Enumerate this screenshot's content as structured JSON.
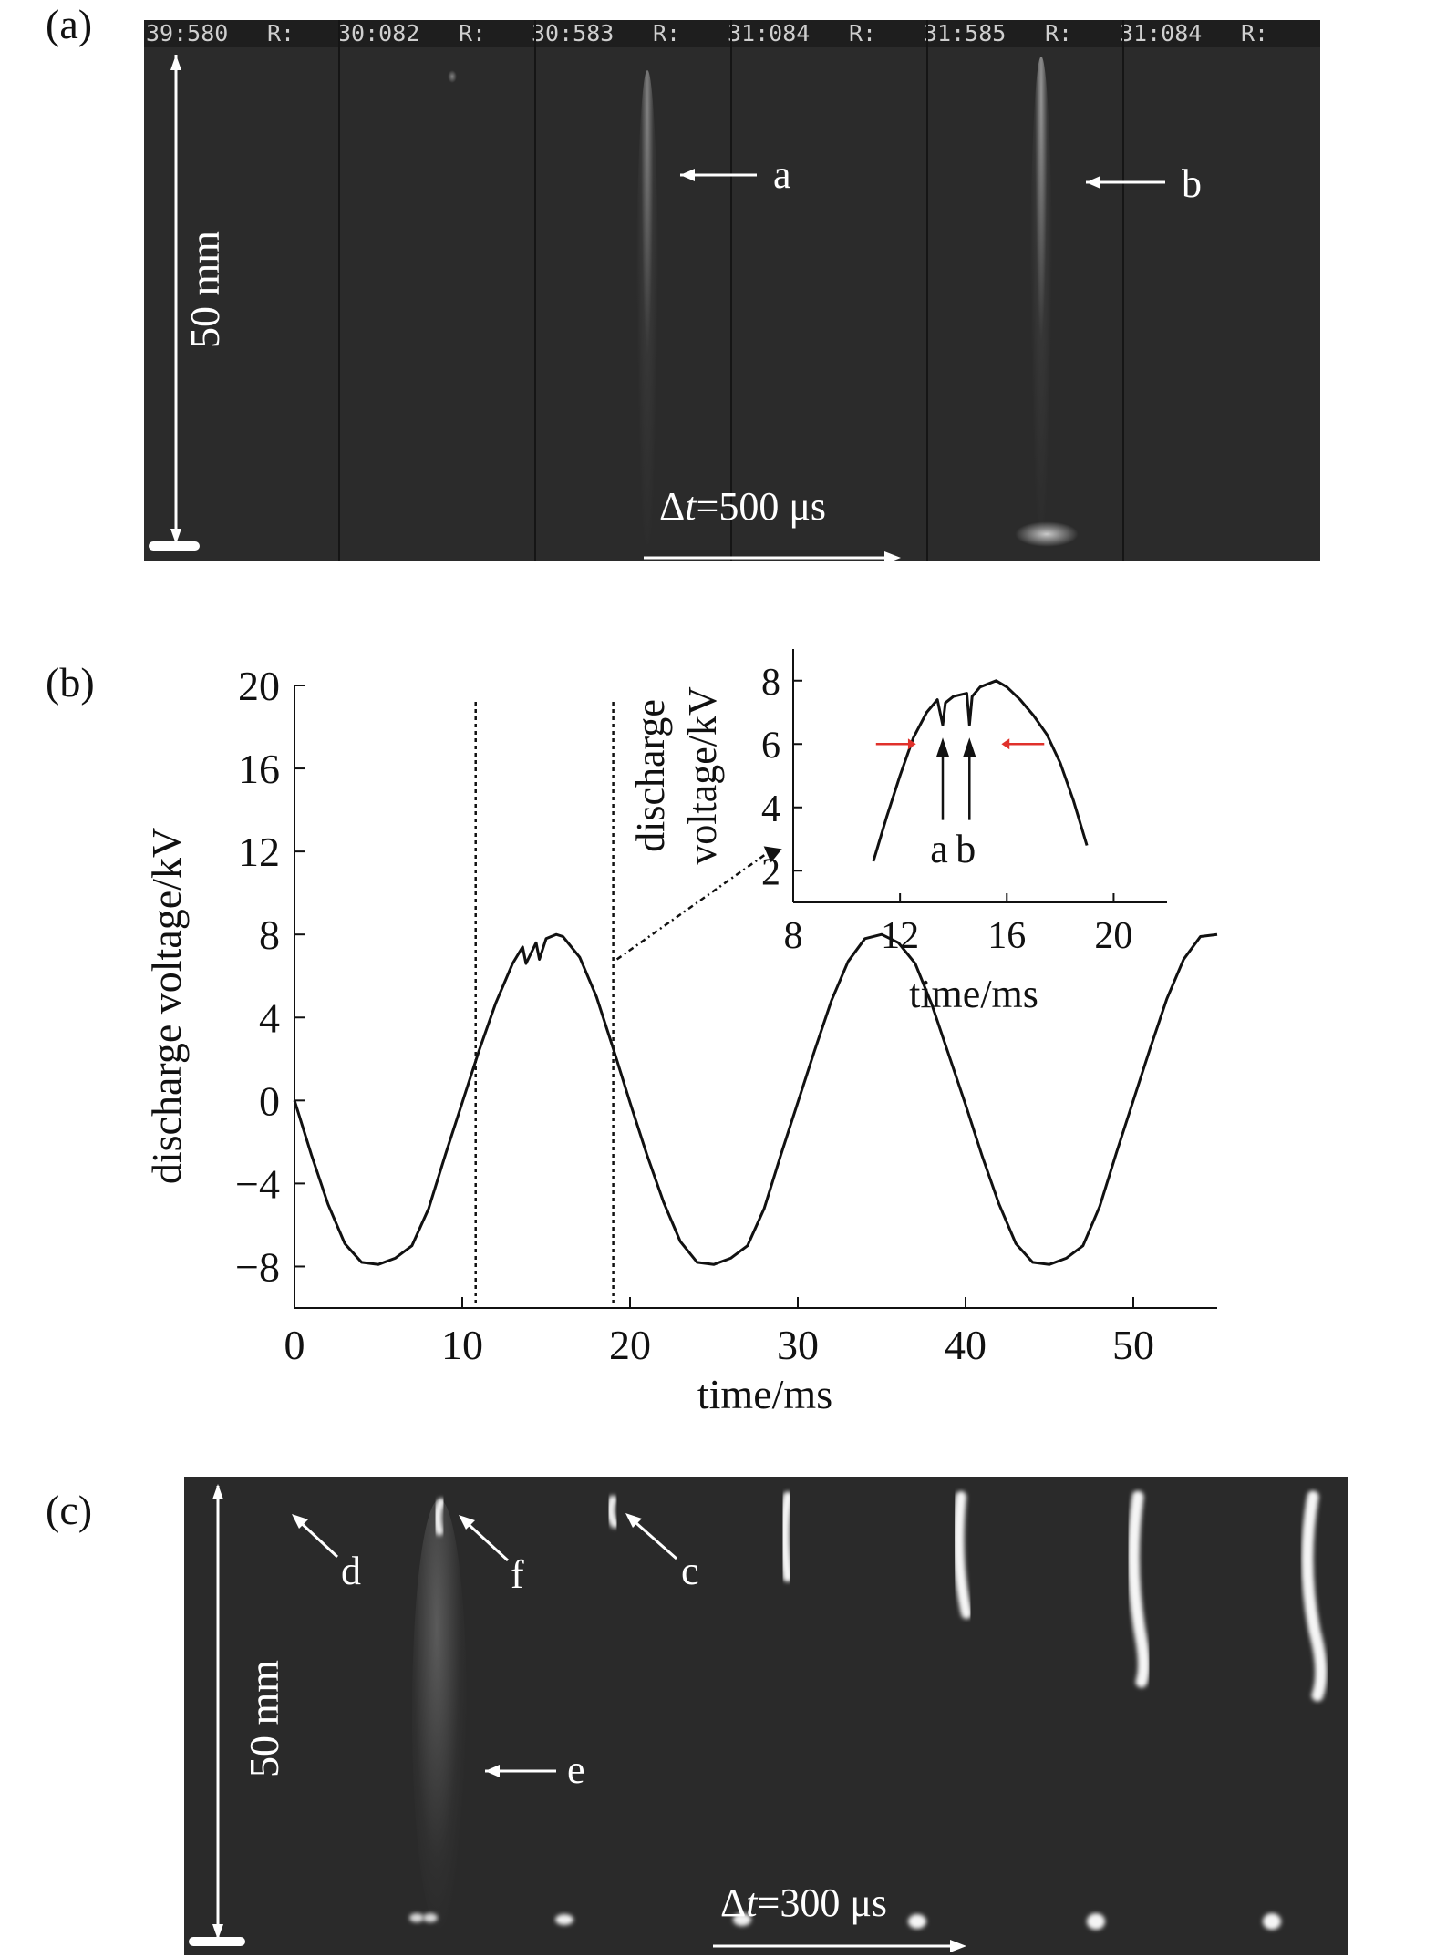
{
  "panels": {
    "a": {
      "label": "(a)",
      "timestamps": [
        "39:580",
        "30:082",
        "30:583",
        "31:084",
        "31:585",
        "31:084"
      ],
      "r_label": "R:",
      "scale_label": "50 mm",
      "arrow_a": "a",
      "arrow_b": "b",
      "dt_prefix": "Δ",
      "dt_var": "t",
      "dt_value": "=500 μs"
    },
    "b": {
      "label": "(b)"
    },
    "c": {
      "label": "(c)",
      "scale_label": "50 mm",
      "arrow_d": "d",
      "arrow_f": "f",
      "arrow_c": "c",
      "arrow_e": "e",
      "dt_prefix": "Δ",
      "dt_var": "t",
      "dt_value": "=300 μs"
    }
  },
  "chart_data": [
    {
      "type": "line",
      "xlabel": "time/ms",
      "ylabel": "discharge voltage/kV",
      "xlim": [
        0,
        55
      ],
      "ylim": [
        -10,
        20
      ],
      "xticks": [
        0,
        10,
        20,
        30,
        40,
        50
      ],
      "yticks": [
        20,
        16,
        12,
        8,
        4,
        0,
        -4,
        -8
      ],
      "ytick_labels": [
        "20",
        "16",
        "12",
        "8",
        "4",
        "0",
        "−4",
        "−8"
      ],
      "vlines": [
        10.8,
        19.0
      ],
      "series": [
        {
          "x": [
            0,
            1,
            2,
            3,
            4,
            5,
            6,
            7,
            8,
            9,
            10,
            11,
            12,
            13,
            13.6,
            13.8,
            14.4,
            14.6,
            15,
            15.6,
            16,
            17,
            18,
            19,
            20,
            21,
            22,
            23,
            24,
            25,
            26,
            27,
            28,
            29,
            30,
            31,
            32,
            33,
            34,
            35,
            36,
            37,
            38,
            39,
            40,
            41,
            42,
            43,
            44,
            45,
            46,
            47,
            48,
            49,
            50,
            51,
            52,
            53,
            54,
            55
          ],
          "y": [
            0,
            -2.6,
            -5.0,
            -6.9,
            -7.8,
            -7.9,
            -7.6,
            -7.0,
            -5.2,
            -2.6,
            -0.1,
            2.4,
            4.7,
            6.6,
            7.4,
            6.6,
            7.6,
            6.8,
            7.8,
            8.0,
            7.9,
            6.9,
            5.0,
            2.5,
            -0.1,
            -2.6,
            -4.9,
            -6.8,
            -7.8,
            -7.9,
            -7.6,
            -7.0,
            -5.2,
            -2.6,
            -0.1,
            2.4,
            4.8,
            6.7,
            7.8,
            8.0,
            7.6,
            6.6,
            4.6,
            2.2,
            -0.2,
            -2.7,
            -5.0,
            -6.9,
            -7.8,
            -7.9,
            -7.6,
            -7.0,
            -5.1,
            -2.5,
            0,
            2.5,
            4.9,
            6.8,
            7.9,
            8.0
          ]
        }
      ]
    },
    {
      "type": "line",
      "xlabel": "time/ms",
      "ylabel": "discharge voltage/kV",
      "xlim": [
        8,
        22
      ],
      "ylim": [
        1,
        9
      ],
      "xticks": [
        8,
        12,
        16,
        20
      ],
      "yticks": [
        8,
        6,
        4,
        2
      ],
      "series": [
        {
          "x": [
            11,
            11.5,
            12,
            12.5,
            13,
            13.4,
            13.6,
            13.7,
            14,
            14.5,
            14.6,
            14.7,
            15,
            15.6,
            16,
            16.5,
            17,
            17.5,
            18,
            18.5,
            19
          ],
          "y": [
            2.3,
            3.7,
            5.0,
            6.2,
            7.0,
            7.4,
            6.6,
            7.3,
            7.5,
            7.6,
            6.6,
            7.5,
            7.8,
            8.0,
            7.8,
            7.4,
            6.9,
            6.3,
            5.4,
            4.2,
            2.8
          ]
        }
      ],
      "markers": {
        "point_labels": [
          "a",
          "b"
        ],
        "point_x": [
          13.6,
          14.6
        ],
        "width_arrows_y": 6.0
      }
    }
  ],
  "colors": {
    "photo_bg": "#2b2b2b",
    "red_arrow": "#e0312b",
    "curve": "#111111"
  }
}
